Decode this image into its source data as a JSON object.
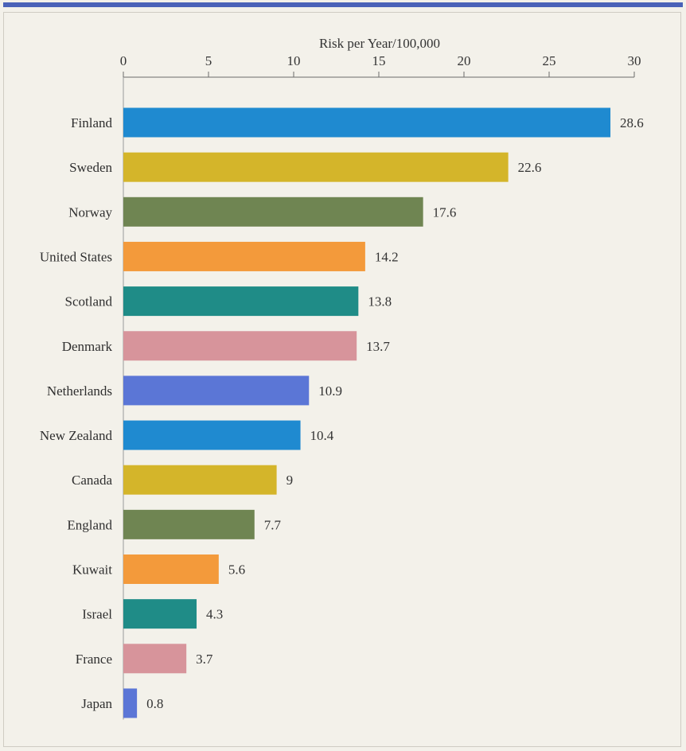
{
  "chart_data": {
    "type": "bar",
    "orientation": "horizontal",
    "title": "",
    "xlabel": "Risk per Year/100,000",
    "ylabel": "",
    "xlim": [
      0,
      30
    ],
    "xticks": [
      "0",
      "5",
      "10",
      "15",
      "20",
      "25",
      "30"
    ],
    "axis_position": "top",
    "grid": false,
    "categories": [
      "Finland",
      "Sweden",
      "Norway",
      "United States",
      "Scotland",
      "Denmark",
      "Netherlands",
      "New Zealand",
      "Canada",
      "England",
      "Kuwait",
      "Israel",
      "France",
      "Japan"
    ],
    "values": [
      28.6,
      22.6,
      17.6,
      14.2,
      13.8,
      13.7,
      10.9,
      10.4,
      9,
      7.7,
      5.6,
      4.3,
      3.7,
      0.8
    ],
    "value_labels": [
      "28.6",
      "22.6",
      "17.6",
      "14.2",
      "13.8",
      "13.7",
      "10.9",
      "10.4",
      "9",
      "7.7",
      "5.6",
      "4.3",
      "3.7",
      "0.8"
    ],
    "colors": [
      "#1f8ad0",
      "#d4b52a",
      "#6f8552",
      "#f39a3b",
      "#1f8c87",
      "#d7949b",
      "#5b76d6",
      "#1f8ad0",
      "#d4b52a",
      "#6f8552",
      "#f39a3b",
      "#1f8c87",
      "#d7949b",
      "#5b76d6"
    ]
  }
}
